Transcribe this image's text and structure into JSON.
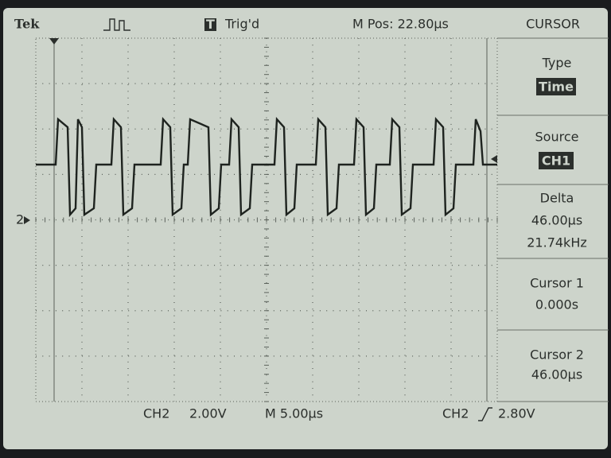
{
  "header": {
    "brand": "Tek",
    "trigger_icon": "T",
    "trigger_status": "Trig'd",
    "position": "M Pos: 22.80µs"
  },
  "menu": {
    "title": "CURSOR",
    "items": [
      {
        "label": "Type",
        "value": "Time"
      },
      {
        "label": "Source",
        "value": "CH1"
      },
      {
        "label": "Delta",
        "values": [
          "46.00µs",
          "21.74kHz"
        ]
      },
      {
        "label": "Cursor 1",
        "values": [
          "0.000s"
        ]
      },
      {
        "label": "Cursor 2",
        "values": [
          "46.00µs"
        ]
      }
    ]
  },
  "screen": {
    "channel_marker": "2"
  },
  "footer": {
    "channel": "CH2",
    "volts_div": "2.00V",
    "timebase": "M 5.00µs",
    "trigger_channel": "CH2",
    "trigger_level": "2.80V"
  }
}
